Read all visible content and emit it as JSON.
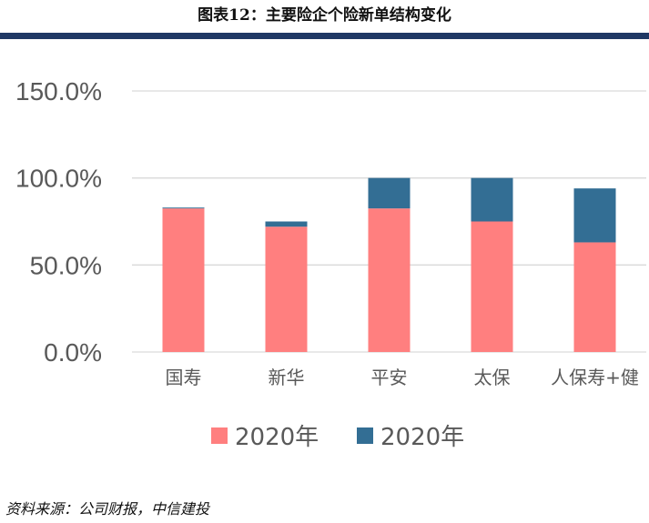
{
  "page": {
    "title": "图表12：主要险企个险新单结构变化",
    "source": "资料来源：公司财报，中信建投"
  },
  "colors": {
    "series1": "#ff7f7f",
    "series2": "#336e94",
    "grid": "#d9d9d9",
    "tick_text": "#595959",
    "rule": "#1f3864"
  },
  "chart_data": {
    "type": "bar",
    "stacked": true,
    "categories": [
      "国寿",
      "新华",
      "平安",
      "太保",
      "人保寿+健"
    ],
    "series": [
      {
        "name": "2020年",
        "values": [
          82.5,
          72.0,
          82.5,
          75.0,
          63.0
        ]
      },
      {
        "name": "2020年",
        "values": [
          0.5,
          3.0,
          17.5,
          25.0,
          31.0
        ]
      }
    ],
    "ylim": [
      0,
      150
    ],
    "yticks": [
      "0.0%",
      "50.0%",
      "100.0%",
      "150.0%"
    ],
    "ytick_values": [
      0,
      50,
      100,
      150
    ],
    "legend_position": "bottom",
    "grid": true
  }
}
